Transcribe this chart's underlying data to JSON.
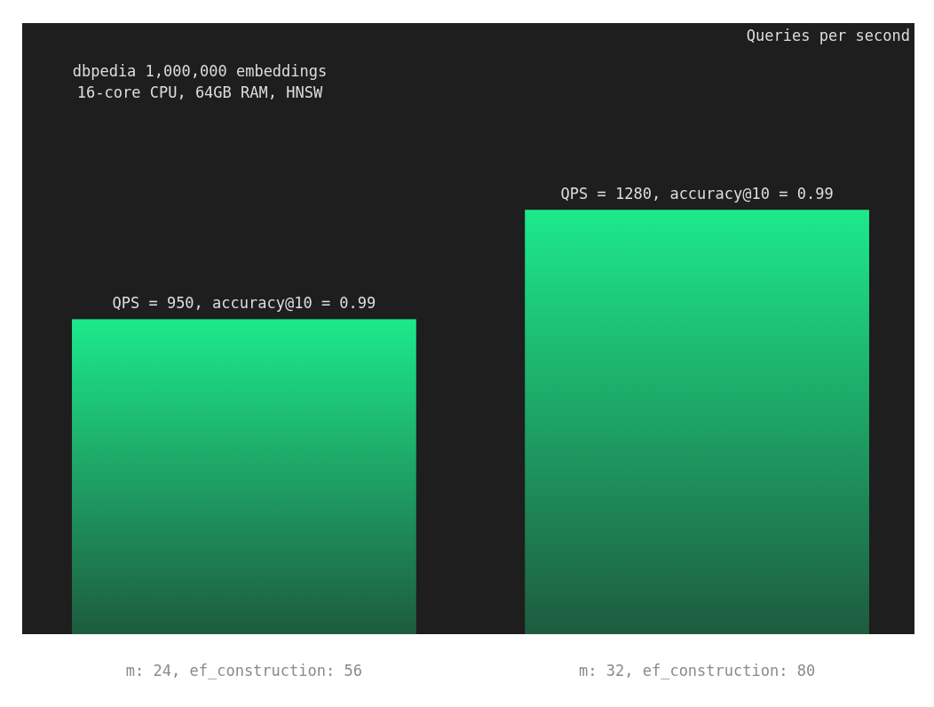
{
  "chart_data": {
    "type": "bar",
    "title": "dbpedia 1,000,000 embeddings",
    "subtitle": "16-core CPU, 64GB RAM, HNSW",
    "annotations": [
      "Queries per second"
    ],
    "categories": [
      "m: 24, ef_construction: 56",
      "m: 32, ef_construction: 80"
    ],
    "values": [
      950,
      1280
    ],
    "value_labels": [
      "QPS = 950, accuracy@10 = 0.99",
      "QPS = 1280, accuracy@10 = 0.99"
    ],
    "color": "#1de98b",
    "tick_labels": "x"
  }
}
